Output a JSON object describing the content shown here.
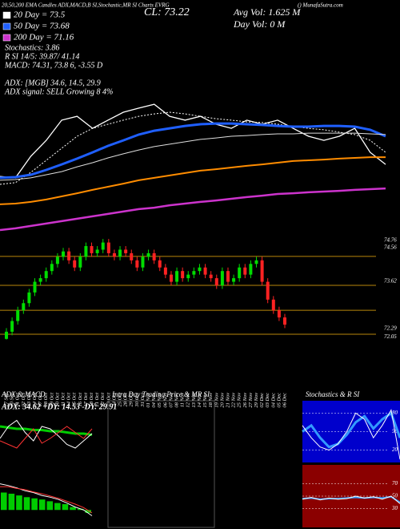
{
  "header": {
    "title": "20,50,200 EMA Candles ADX,MACD,B SI,Stochastic,MR SI Charts EVRG",
    "source": "() MunafaSutra.com",
    "close": "CL: 73.22",
    "legend": [
      {
        "label": "20 Day = 73.5",
        "color": "#ffffff"
      },
      {
        "label": "50 Day = 73.68",
        "color": "#1f5fff"
      },
      {
        "label": "200 Day = 71.16",
        "color": "#cc33cc"
      }
    ],
    "avg_vol": "Avg Vol: 1.625 M",
    "day_vol": "Day Vol: 0  M",
    "stats": [
      "Stochastics: 3.86",
      "R SI 14/5: 39.87/ 41.14",
      "MACD: 74.31, 73.8   6, -3.55 D"
    ],
    "adx": [
      "ADX:                  [MGB] 34.6, 14.5, 29.9",
      "ADX  signal: SELL Growing 8 4%"
    ]
  },
  "chart_data": [
    {
      "type": "line",
      "ylim": [
        69.5,
        75.5
      ],
      "series": [
        {
          "color": "#ffffff",
          "width": 1.3,
          "dash": "",
          "values": [
            71.83,
            71.77,
            72.67,
            73.33,
            74.17,
            74.33,
            73.83,
            74.17,
            74.5,
            74.67,
            74.83,
            74.33,
            74.17,
            74.33,
            74.0,
            73.83,
            74.17,
            74.0,
            74.17,
            73.83,
            73.5,
            73.33,
            73.5,
            73.83,
            72.83,
            72.33
          ]
        },
        {
          "color": "#ffffff",
          "width": 1,
          "dash": "2,2",
          "values": [
            71.5,
            71.57,
            72.0,
            72.5,
            73.0,
            73.5,
            73.83,
            74.0,
            74.17,
            74.33,
            74.43,
            74.5,
            74.43,
            74.33,
            74.23,
            74.17,
            74.1,
            74.07,
            74.0,
            73.9,
            73.83,
            73.77,
            73.67,
            73.57,
            73.33,
            72.83
          ]
        },
        {
          "color": "#1f5fff",
          "width": 3,
          "dash": "",
          "values": [
            71.77,
            71.8,
            71.9,
            72.1,
            72.33,
            72.57,
            72.83,
            73.1,
            73.33,
            73.57,
            73.73,
            73.83,
            73.93,
            74.0,
            74.03,
            74.03,
            74.0,
            73.97,
            73.93,
            73.9,
            73.9,
            73.93,
            73.93,
            73.9,
            73.77,
            73.5
          ]
        },
        {
          "color": "#dddddd",
          "width": 1,
          "dash": "",
          "values": [
            71.67,
            71.7,
            71.77,
            71.9,
            72.03,
            72.23,
            72.4,
            72.6,
            72.77,
            72.93,
            73.07,
            73.17,
            73.27,
            73.37,
            73.43,
            73.5,
            73.53,
            73.57,
            73.6,
            73.6,
            73.63,
            73.63,
            73.63,
            73.63,
            73.6,
            73.57
          ]
        },
        {
          "color": "#ff8c00",
          "width": 2,
          "dash": "",
          "values": [
            70.67,
            70.7,
            70.77,
            70.87,
            71.0,
            71.13,
            71.27,
            71.4,
            71.53,
            71.67,
            71.77,
            71.87,
            71.97,
            72.07,
            72.13,
            72.2,
            72.27,
            72.33,
            72.4,
            72.47,
            72.5,
            72.53,
            72.57,
            72.6,
            72.63,
            72.63
          ]
        },
        {
          "color": "#cc33cc",
          "width": 2.5,
          "dash": "",
          "values": [
            69.6,
            69.67,
            69.77,
            69.87,
            69.97,
            70.07,
            70.17,
            70.27,
            70.37,
            70.47,
            70.53,
            70.63,
            70.7,
            70.77,
            70.83,
            70.9,
            70.97,
            71.03,
            71.1,
            71.13,
            71.17,
            71.2,
            71.23,
            71.27,
            71.3,
            71.33
          ]
        }
      ]
    },
    {
      "type": "candlestick",
      "ylim": [
        71.95,
        74.87
      ],
      "yticks": [
        74.76,
        74.56,
        73.62,
        72.29,
        72.05
      ],
      "levels": [
        74.31,
        73.5,
        72.8,
        72.13
      ],
      "up_color": "#00dd00",
      "down_color": "#ff2222",
      "level_color": "#b8860b",
      "categories": [
        "27 Sep",
        "30 Sep",
        "01 Oct",
        "02 Oct",
        "03 Oct",
        "04 Oct",
        "07 Oct",
        "08 Oct",
        "09 Oct",
        "10 Oct",
        "11 Oct",
        "14 Oct",
        "15 Oct",
        "16 Oct",
        "17 Oct",
        "18 Oct",
        "21 Oct",
        "22 Oct",
        "23 Oct",
        "24 Oct",
        "25 Oct",
        "28 Oct",
        "29 Oct",
        "30 Oct",
        "31 Oct",
        "01 Nov",
        "04 Nov",
        "05 Nov",
        "06 Nov",
        "07 Nov",
        "08 Nov",
        "11 Nov",
        "12 Nov",
        "13 Nov",
        "14 Nov",
        "15 Nov",
        "18 Nov",
        "19 Nov",
        "20 Nov",
        "21 Nov",
        "22 Nov",
        "25 Nov",
        "26 Nov",
        "27 Nov",
        "29 Nov",
        "02 Dec",
        "03 Dec",
        "04 Dec",
        "05 Dec",
        "06 Dec"
      ],
      "open": [
        72.0,
        72.2,
        72.5,
        72.8,
        73.0,
        73.3,
        73.6,
        73.7,
        73.9,
        74.1,
        74.3,
        74.45,
        74.2,
        74.0,
        74.3,
        74.6,
        74.4,
        74.5,
        74.7,
        74.4,
        74.3,
        74.5,
        74.4,
        74.2,
        74.0,
        74.3,
        74.4,
        74.2,
        74.0,
        73.8,
        73.6,
        73.9,
        73.7,
        73.8,
        73.9,
        74.0,
        73.8,
        73.7,
        73.5,
        73.9,
        73.6,
        73.7,
        74.0,
        73.8,
        74.1,
        74.2,
        73.6,
        73.1,
        72.8,
        72.6
      ],
      "high": [
        72.3,
        72.6,
        72.9,
        73.1,
        73.4,
        73.7,
        73.8,
        74.0,
        74.2,
        74.4,
        74.55,
        74.55,
        74.3,
        74.4,
        74.7,
        74.7,
        74.6,
        74.8,
        74.8,
        74.5,
        74.6,
        74.6,
        74.5,
        74.3,
        74.4,
        74.5,
        74.5,
        74.3,
        74.1,
        73.9,
        74.0,
        74.0,
        73.9,
        74.0,
        74.1,
        74.1,
        73.9,
        73.8,
        74.0,
        74.0,
        73.8,
        74.1,
        74.1,
        74.2,
        74.3,
        74.3,
        73.7,
        73.2,
        72.9,
        72.7
      ],
      "low": [
        71.98,
        72.1,
        72.4,
        72.7,
        72.9,
        73.2,
        73.5,
        73.6,
        73.8,
        74.0,
        74.2,
        74.1,
        73.9,
        73.9,
        74.2,
        74.3,
        74.3,
        74.4,
        74.3,
        74.2,
        74.2,
        74.3,
        74.1,
        73.9,
        73.9,
        74.2,
        74.1,
        73.9,
        73.7,
        73.5,
        73.5,
        73.6,
        73.6,
        73.7,
        73.8,
        73.7,
        73.6,
        73.4,
        73.4,
        73.5,
        73.5,
        73.6,
        73.7,
        73.7,
        74.0,
        73.5,
        73.0,
        72.7,
        72.5,
        72.3
      ],
      "close": [
        72.2,
        72.5,
        72.8,
        73.0,
        73.3,
        73.6,
        73.7,
        73.9,
        74.1,
        74.3,
        74.45,
        74.2,
        74.0,
        74.3,
        74.6,
        74.4,
        74.5,
        74.7,
        74.4,
        74.3,
        74.5,
        74.4,
        74.2,
        74.0,
        74.3,
        74.4,
        74.2,
        74.0,
        73.8,
        73.6,
        73.9,
        73.7,
        73.8,
        73.9,
        74.0,
        73.8,
        73.7,
        73.5,
        73.9,
        73.6,
        73.7,
        74.0,
        73.8,
        74.1,
        74.2,
        73.6,
        73.1,
        72.8,
        72.6,
        72.4
      ]
    },
    {
      "type": "line",
      "title": "ADX & MACD",
      "annotation": "ADX: 34.62 +DY: 14.53 -DY: 29.91",
      "ylim": [
        0,
        50
      ],
      "series": [
        {
          "color": "#00cc00",
          "width": 3,
          "dash": "",
          "values": [
            30,
            29,
            28,
            28,
            27,
            27,
            26,
            26,
            25,
            24,
            24,
            23
          ]
        },
        {
          "color": "#ffffff",
          "width": 1,
          "dash": "",
          "values": [
            20,
            30,
            35,
            25,
            18,
            30,
            28,
            22,
            15,
            12,
            18,
            24
          ]
        },
        {
          "color": "#ff3333",
          "width": 1,
          "dash": "",
          "values": [
            18,
            15,
            12,
            20,
            28,
            16,
            20,
            25,
            30,
            25,
            20,
            28
          ]
        }
      ]
    },
    {
      "type": "bar",
      "color": "#00cc00",
      "ylim": [
        -0.3,
        0.5
      ],
      "values": [
        0.3,
        0.28,
        0.25,
        0.22,
        0.2,
        0.18,
        0.15,
        0.12,
        0.1,
        0.05,
        0.02,
        -0.05
      ],
      "series": [
        {
          "color": "#ffffff",
          "width": 1,
          "dash": "",
          "values": [
            0.45,
            0.42,
            0.38,
            0.33,
            0.3,
            0.25,
            0.22,
            0.18,
            0.12,
            0.05,
            0.0,
            -0.1
          ]
        },
        {
          "color": "#ff3333",
          "width": 1,
          "dash": "",
          "values": [
            0.4,
            0.4,
            0.37,
            0.35,
            0.31,
            0.28,
            0.24,
            0.2,
            0.15,
            0.1,
            0.04,
            -0.05
          ]
        }
      ]
    },
    {
      "type": "line",
      "title": "Intra Day Trading Price & MR SI",
      "ylim": [
        0,
        1
      ],
      "series": []
    },
    {
      "type": "line",
      "title": "Stochastics & R SI",
      "background": "#0000cc",
      "ylim": [
        0,
        100
      ],
      "yticks": [
        80,
        50,
        20
      ],
      "series": [
        {
          "color": "#3399ff",
          "width": 3,
          "dash": "",
          "values": [
            50,
            60,
            40,
            25,
            30,
            45,
            65,
            75,
            55,
            70,
            80,
            40
          ]
        },
        {
          "color": "#ffffff",
          "width": 1,
          "dash": "",
          "values": [
            60,
            40,
            25,
            20,
            30,
            50,
            80,
            70,
            40,
            60,
            85,
            5
          ]
        }
      ]
    },
    {
      "type": "line",
      "background": "#8b0000",
      "ylim": [
        0,
        100
      ],
      "yticks": [
        70,
        50,
        30
      ],
      "series": [
        {
          "color": "#3399ff",
          "width": 2,
          "dash": "",
          "values": [
            46,
            47,
            45,
            46,
            46,
            47,
            48,
            47,
            48,
            47,
            49,
            40
          ]
        },
        {
          "color": "#ffffff",
          "width": 1,
          "dash": "",
          "values": [
            45,
            48,
            44,
            47,
            45,
            46,
            50,
            47,
            49,
            45,
            50,
            38
          ]
        }
      ]
    }
  ]
}
